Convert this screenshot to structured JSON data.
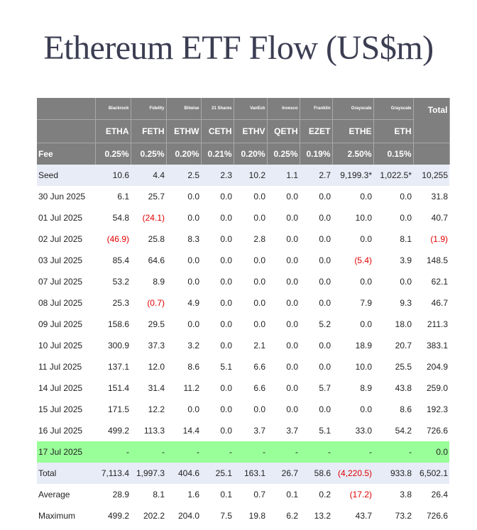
{
  "title": "Ethereum ETF Flow (US$m)",
  "colors": {
    "header_bg": "#7f7f7f",
    "seed_bg": "#e8ecf7",
    "highlight_bg": "#99ff99",
    "negative": "#e00000"
  },
  "issuers": [
    "Blackrock",
    "Fidelity",
    "Bitwise",
    "21 Shares",
    "VanEck",
    "Invesco",
    "Franklin",
    "Grayscale",
    "Grayscale"
  ],
  "tickers": [
    "ETHA",
    "FETH",
    "ETHW",
    "CETH",
    "ETHV",
    "QETH",
    "EZET",
    "ETHE",
    "ETH"
  ],
  "total_header": "Total",
  "fee_label": "Fee",
  "fees": [
    "0.25%",
    "0.25%",
    "0.20%",
    "0.21%",
    "0.20%",
    "0.25%",
    "0.19%",
    "2.50%",
    "0.15%"
  ],
  "rows": [
    {
      "label": "Seed",
      "cells": [
        "10.6",
        "4.4",
        "2.5",
        "2.3",
        "10.2",
        "1.1",
        "2.7",
        "9,199.3*",
        "1,022.5*",
        "10,255"
      ]
    },
    {
      "label": "30 Jun 2025",
      "cells": [
        "6.1",
        "25.7",
        "0.0",
        "0.0",
        "0.0",
        "0.0",
        "0.0",
        "0.0",
        "0.0",
        "31.8"
      ]
    },
    {
      "label": "01 Jul 2025",
      "cells": [
        "54.8",
        "(24.1)",
        "0.0",
        "0.0",
        "0.0",
        "0.0",
        "0.0",
        "10.0",
        "0.0",
        "40.7"
      ]
    },
    {
      "label": "02 Jul 2025",
      "cells": [
        "(46.9)",
        "25.8",
        "8.3",
        "0.0",
        "2.8",
        "0.0",
        "0.0",
        "0.0",
        "8.1",
        "(1.9)"
      ]
    },
    {
      "label": "03 Jul 2025",
      "cells": [
        "85.4",
        "64.6",
        "0.0",
        "0.0",
        "0.0",
        "0.0",
        "0.0",
        "(5.4)",
        "3.9",
        "148.5"
      ]
    },
    {
      "label": "07 Jul 2025",
      "cells": [
        "53.2",
        "8.9",
        "0.0",
        "0.0",
        "0.0",
        "0.0",
        "0.0",
        "0.0",
        "0.0",
        "62.1"
      ]
    },
    {
      "label": "08 Jul 2025",
      "cells": [
        "25.3",
        "(0.7)",
        "4.9",
        "0.0",
        "0.0",
        "0.0",
        "0.0",
        "7.9",
        "9.3",
        "46.7"
      ]
    },
    {
      "label": "09 Jul 2025",
      "cells": [
        "158.6",
        "29.5",
        "0.0",
        "0.0",
        "0.0",
        "0.0",
        "5.2",
        "0.0",
        "18.0",
        "211.3"
      ]
    },
    {
      "label": "10 Jul 2025",
      "cells": [
        "300.9",
        "37.3",
        "3.2",
        "0.0",
        "2.1",
        "0.0",
        "0.0",
        "18.9",
        "20.7",
        "383.1"
      ]
    },
    {
      "label": "11 Jul 2025",
      "cells": [
        "137.1",
        "12.0",
        "8.6",
        "5.1",
        "6.6",
        "0.0",
        "0.0",
        "10.0",
        "25.5",
        "204.9"
      ]
    },
    {
      "label": "14 Jul 2025",
      "cells": [
        "151.4",
        "31.4",
        "11.2",
        "0.0",
        "6.6",
        "0.0",
        "5.7",
        "8.9",
        "43.8",
        "259.0"
      ]
    },
    {
      "label": "15 Jul 2025",
      "cells": [
        "171.5",
        "12.2",
        "0.0",
        "0.0",
        "0.0",
        "0.0",
        "0.0",
        "0.0",
        "8.6",
        "192.3"
      ]
    },
    {
      "label": "16 Jul 2025",
      "cells": [
        "499.2",
        "113.3",
        "14.4",
        "0.0",
        "3.7",
        "3.7",
        "5.1",
        "33.0",
        "54.2",
        "726.6"
      ]
    },
    {
      "label": "17 Jul 2025",
      "cells": [
        "-",
        "-",
        "-",
        "-",
        "-",
        "-",
        "-",
        "-",
        "-",
        "0.0"
      ]
    },
    {
      "label": "Total",
      "cells": [
        "7,113.4",
        "1,997.3",
        "404.6",
        "25.1",
        "163.1",
        "26.7",
        "58.6",
        "(4,220.5)",
        "933.8",
        "6,502.1"
      ]
    },
    {
      "label": "Average",
      "cells": [
        "28.9",
        "8.1",
        "1.6",
        "0.1",
        "0.7",
        "0.1",
        "0.2",
        "(17.2)",
        "3.8",
        "26.4"
      ]
    },
    {
      "label": "Maximum",
      "cells": [
        "499.2",
        "202.2",
        "204.0",
        "7.5",
        "19.8",
        "6.2",
        "13.2",
        "43.7",
        "73.2",
        "726.6"
      ]
    }
  ]
}
